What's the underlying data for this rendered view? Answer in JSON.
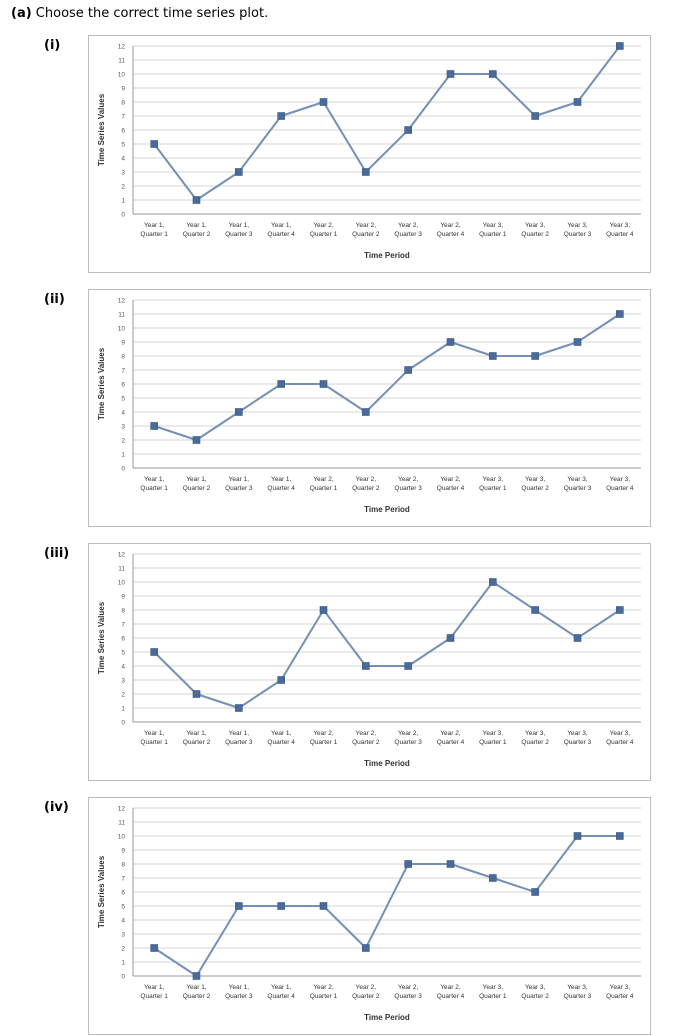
{
  "question": {
    "part": "(a)",
    "text": "Choose the correct time series plot."
  },
  "styles": {
    "line_color": "#7590b3",
    "marker_color": "#4a6a99",
    "grid_color": "#c8c8c8"
  },
  "chart_data": [
    {
      "option": "(i)",
      "type": "line",
      "categories": [
        "Year 1, Quarter 1",
        "Year 1, Quarter 2",
        "Year 1, Quarter 3",
        "Year 1, Quarter 4",
        "Year 2, Quarter 1",
        "Year 2, Quarter 2",
        "Year 2, Quarter 3",
        "Year 2, Quarter 4",
        "Year 3, Quarter 1",
        "Year 3, Quarter 2",
        "Year 3, Quarter 3",
        "Year 3, Quarter 4"
      ],
      "values": [
        5,
        1,
        3,
        7,
        8,
        3,
        6,
        10,
        10,
        7,
        8,
        12
      ],
      "ylabel": "Time Series Values",
      "xlabel": "Time Period",
      "ylim": [
        0,
        12
      ],
      "grid": true
    },
    {
      "option": "(ii)",
      "type": "line",
      "categories": [
        "Year 1, Quarter 1",
        "Year 1, Quarter 2",
        "Year 1, Quarter 3",
        "Year 1, Quarter 4",
        "Year 2, Quarter 1",
        "Year 2, Quarter 2",
        "Year 2, Quarter 3",
        "Year 2, Quarter 4",
        "Year 3, Quarter 1",
        "Year 3, Quarter 2",
        "Year 3, Quarter 3",
        "Year 3, Quarter 4"
      ],
      "values": [
        3,
        2,
        4,
        6,
        6,
        4,
        7,
        9,
        8,
        8,
        9,
        11
      ],
      "ylabel": "Time Series Values",
      "xlabel": "Time Period",
      "ylim": [
        0,
        12
      ],
      "grid": true
    },
    {
      "option": "(iii)",
      "type": "line",
      "categories": [
        "Year 1, Quarter 1",
        "Year 1, Quarter 2",
        "Year 1, Quarter 3",
        "Year 1, Quarter 4",
        "Year 2, Quarter 1",
        "Year 2, Quarter 2",
        "Year 2, Quarter 3",
        "Year 2, Quarter 4",
        "Year 3, Quarter 1",
        "Year 3, Quarter 2",
        "Year 3, Quarter 3",
        "Year 3, Quarter 4"
      ],
      "values": [
        5,
        2,
        1,
        3,
        8,
        4,
        4,
        6,
        10,
        8,
        6,
        8
      ],
      "ylabel": "Time Series Values",
      "xlabel": "Time Period",
      "ylim": [
        0,
        12
      ],
      "grid": true
    },
    {
      "option": "(iv)",
      "type": "line",
      "categories": [
        "Year 1, Quarter 1",
        "Year 1, Quarter 2",
        "Year 1, Quarter 3",
        "Year 1, Quarter 4",
        "Year 2, Quarter 1",
        "Year 2, Quarter 2",
        "Year 2, Quarter 3",
        "Year 2, Quarter 4",
        "Year 3, Quarter 1",
        "Year 3, Quarter 2",
        "Year 3, Quarter 3",
        "Year 3, Quarter 4"
      ],
      "values": [
        2,
        0,
        5,
        5,
        5,
        2,
        8,
        8,
        7,
        6,
        10,
        10
      ],
      "ylabel": "Time Series Values",
      "xlabel": "Time Period",
      "ylim": [
        0,
        12
      ],
      "grid": true
    }
  ]
}
